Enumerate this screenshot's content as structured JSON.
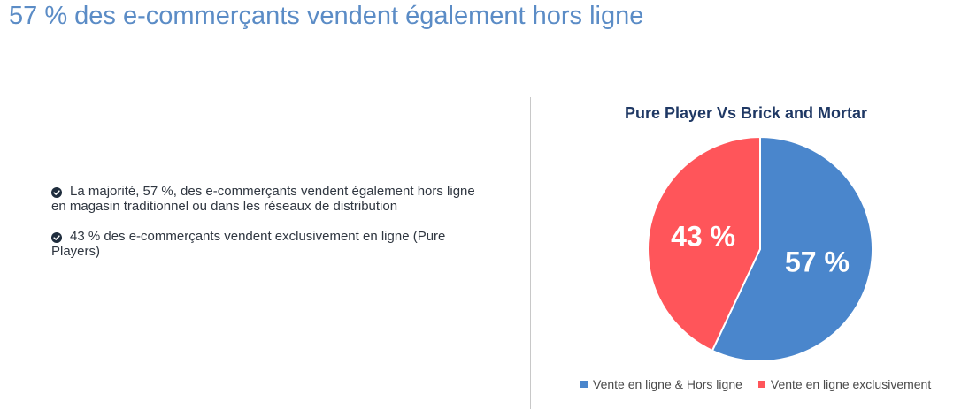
{
  "page": {
    "title": "57 % des e-commerçants vendent également hors ligne"
  },
  "bullets": [
    {
      "text": "La majorité, 57 %, des e-commerçants vendent également hors ligne en magasin traditionnel ou dans les réseaux de distribution"
    },
    {
      "text": "43 % des e-commerçants vendent exclusivement en ligne (Pure Players)"
    }
  ],
  "icons": {
    "bullet": "check-circle-icon"
  },
  "colors": {
    "title": "#5b8cc6",
    "bullet_icon": "#1f2d3d",
    "series_online_offline": "#4a86cc",
    "series_online_only": "#ff555a"
  },
  "chart_data": {
    "type": "pie",
    "title": "Pure Player Vs Brick and Mortar",
    "slices": [
      {
        "name": "Vente en ligne & Hors ligne",
        "value": 57,
        "label": "57 %",
        "color": "#4a86cc"
      },
      {
        "name": "Vente en ligne exclusivement",
        "value": 43,
        "label": "43 %",
        "color": "#ff555a"
      }
    ],
    "legend_position": "bottom"
  }
}
